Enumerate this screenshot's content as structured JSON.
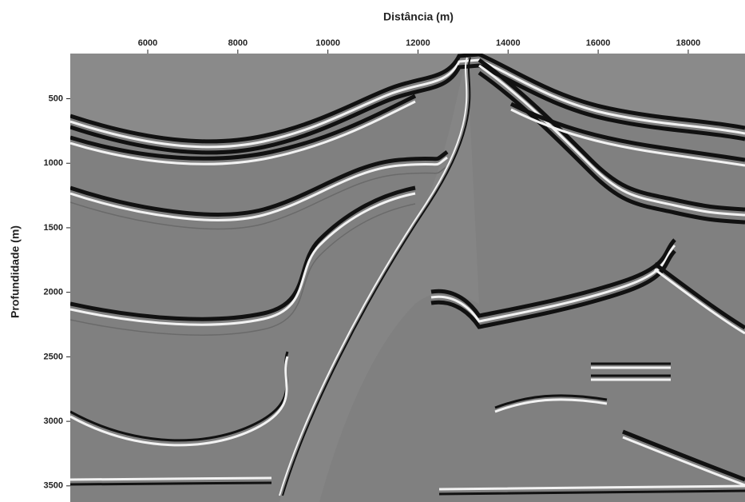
{
  "chart_data": {
    "type": "seismic-section",
    "xlabel": "Distância (m)",
    "ylabel": "Profundidade (m)",
    "xlim": [
      4280,
      19260
    ],
    "xticks": [
      6000,
      8000,
      10000,
      12000,
      14000,
      16000,
      18000
    ],
    "ylim": [
      150,
      3625
    ],
    "yticks": [
      500,
      1000,
      1500,
      2000,
      2500,
      3000,
      3500
    ],
    "y_inverted": true,
    "x_axis_position": "top"
  }
}
